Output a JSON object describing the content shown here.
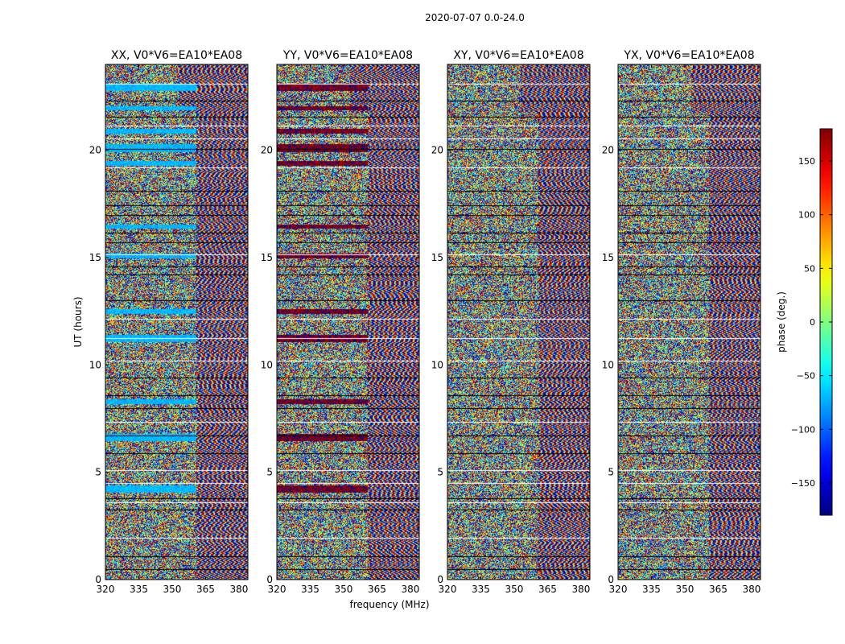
{
  "chart_data": {
    "type": "heatmap",
    "suptitle": "2020-07-07 0.0-24.0",
    "xlabel": "frequency (MHz)",
    "ylabel": "UT (hours)",
    "xlim": [
      320,
      384
    ],
    "ylim": [
      0,
      24
    ],
    "x_ticks": [
      320,
      335,
      350,
      365,
      380
    ],
    "y_ticks": [
      0,
      5,
      10,
      15,
      20
    ],
    "panels": [
      {
        "title": "XX, V0*V6=EA10*EA08",
        "polarization": "XX",
        "offset_phase": -70
      },
      {
        "title": "YY, V0*V6=EA10*EA08",
        "polarization": "YY",
        "offset_phase": 175
      },
      {
        "title": "XY, V0*V6=EA10*EA08",
        "polarization": "XY",
        "offset_phase": 0
      },
      {
        "title": "YX, V0*V6=EA10*EA08",
        "polarization": "YX",
        "offset_phase": 0
      }
    ],
    "smooth_freq_cutoff_mhz": 361,
    "gap_hours": [
      0.5,
      1.1,
      1.95,
      3.25,
      3.6,
      3.8,
      4.5,
      5.1,
      5.9,
      6.7,
      7.35,
      8.0,
      8.6,
      9.4,
      10.2,
      11.25,
      12.15,
      13.0,
      14.2,
      14.6,
      15.15,
      15.7,
      16.15,
      17.0,
      17.45,
      18.1,
      19.2,
      20.05,
      20.55,
      21.15,
      21.55,
      22.3,
      23.1
    ],
    "bright_bands": [
      {
        "hour": 4.1,
        "height": 0.3
      },
      {
        "hour": 6.5,
        "height": 0.3
      },
      {
        "hour": 8.2,
        "height": 0.2
      },
      {
        "hour": 11.1,
        "height": 0.3
      },
      {
        "hour": 12.4,
        "height": 0.2
      },
      {
        "hour": 15.0,
        "height": 0.2
      },
      {
        "hour": 16.4,
        "height": 0.15
      },
      {
        "hour": 19.3,
        "height": 0.2
      },
      {
        "hour": 19.95,
        "height": 0.35
      },
      {
        "hour": 20.8,
        "height": 0.2
      },
      {
        "hour": 21.9,
        "height": 0.15
      },
      {
        "hour": 22.8,
        "height": 0.25
      }
    ],
    "colorbar": {
      "label": "phase (deg.)",
      "range": [
        -180,
        180
      ],
      "ticks": [
        -150,
        -100,
        -50,
        0,
        50,
        100,
        150
      ],
      "tick_labels": [
        "−150",
        "−100",
        "−50",
        "0",
        "50",
        "100",
        "150"
      ],
      "colormap": "jet"
    }
  }
}
